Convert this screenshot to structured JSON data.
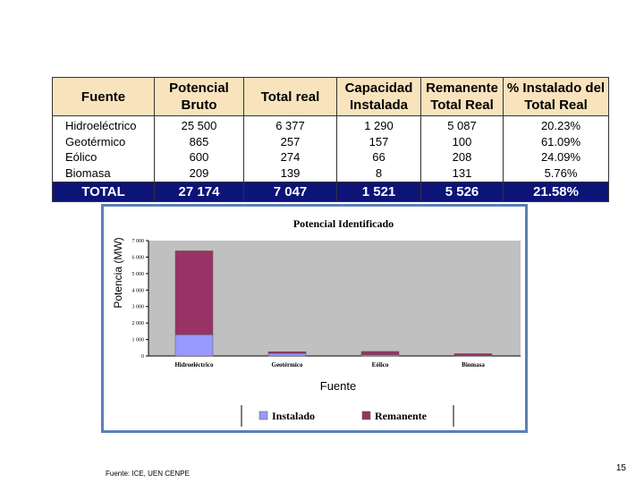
{
  "table": {
    "headers": [
      "Fuente",
      "Potencial\nBruto",
      "Total real",
      "Capacidad\nInstalada",
      "Remanente\nTotal Real",
      "% Instalado del\nTotal Real"
    ],
    "rows": [
      [
        "Hidroeléctrico",
        "25 500",
        "6 377",
        "1 290",
        "5 087",
        "20.23%"
      ],
      [
        "Geotérmico",
        "865",
        "257",
        "157",
        "100",
        "61.09%"
      ],
      [
        "Eólico",
        "600",
        "274",
        "66",
        "208",
        "24.09%"
      ],
      [
        "Biomasa",
        "209",
        "139",
        "8",
        "131",
        "5.76%"
      ]
    ],
    "total": [
      "TOTAL",
      "27 174",
      "7 047",
      "1 521",
      "5 526",
      "21.58%"
    ]
  },
  "chart_data": {
    "type": "bar",
    "stacked": true,
    "title": "Potencial Identificado",
    "xlabel": "Fuente",
    "ylabel": "Potencia (MW)",
    "categories": [
      "Hidroeléctrico",
      "Geotérmico",
      "Eólico",
      "Biomasa"
    ],
    "series": [
      {
        "name": "Instalado",
        "color": "#9999ff",
        "values": [
          1290,
          157,
          66,
          8
        ]
      },
      {
        "name": "Remanente",
        "color": "#993366",
        "values": [
          5087,
          100,
          208,
          131
        ]
      }
    ],
    "ylim": [
      0,
      7000
    ],
    "yticks": [
      "0",
      "1 000",
      "2 000",
      "3 000",
      "4 000",
      "5 000",
      "6 000",
      "7 000"
    ],
    "plot_background": "#c0c0c0",
    "grid": false,
    "legend_position": "bottom"
  },
  "footer": {
    "source": "Fuente: ICE, UEN CENPE",
    "page_number": "15"
  }
}
